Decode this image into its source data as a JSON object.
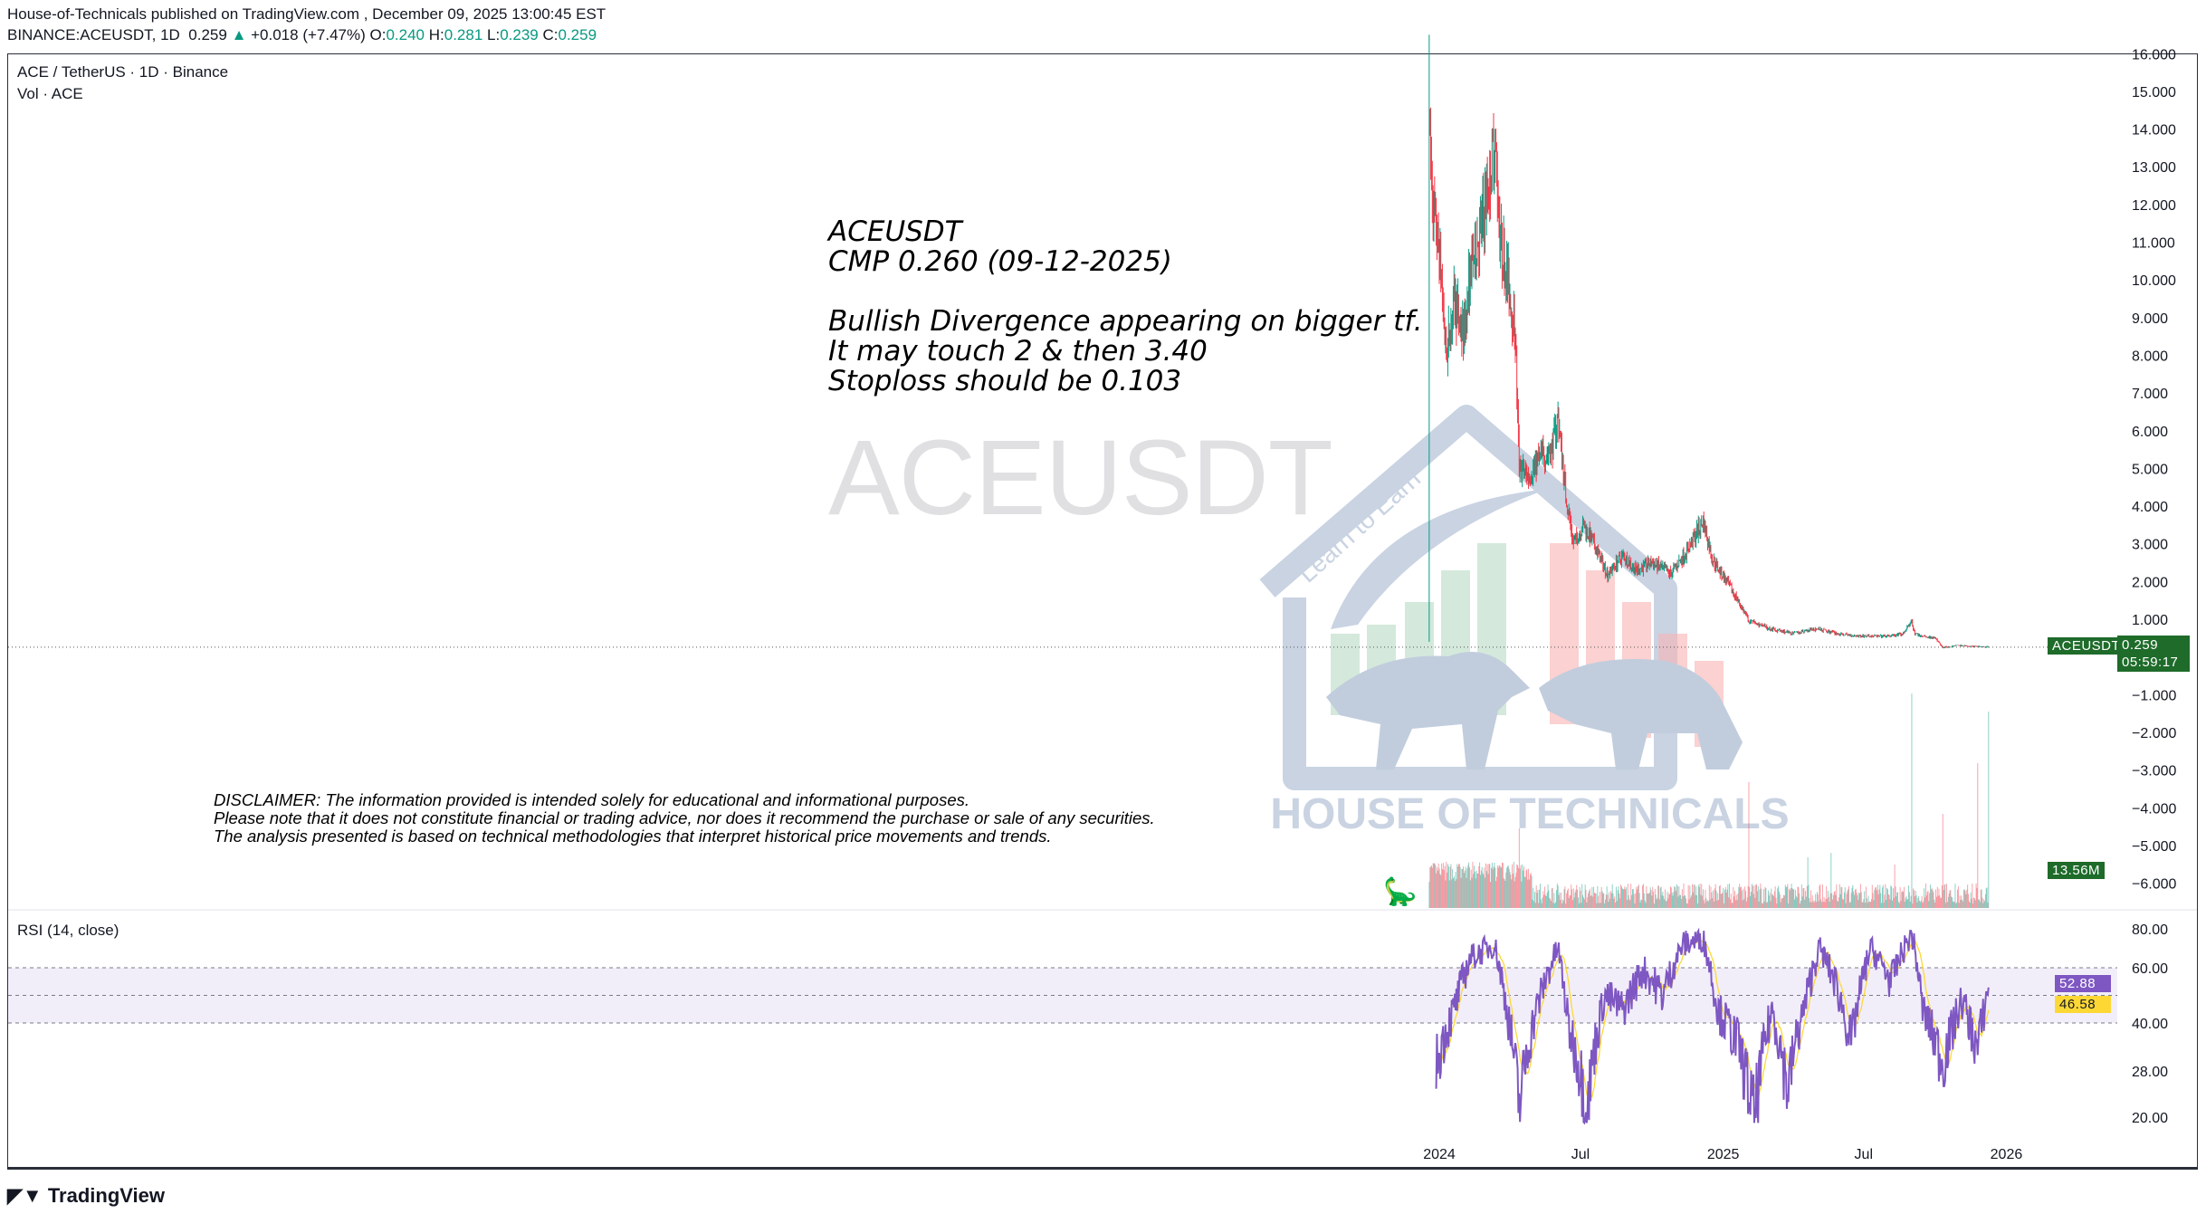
{
  "header": {
    "published": "House-of-Technicals published on TradingView.com , December 09, 2025 13:00:45 EST",
    "symbol": "BINANCE:ACEUSDT, 1D",
    "last": "0.259",
    "change": "+0.018 (+7.47%)",
    "o_label": "O:",
    "o": "0.240",
    "h_label": "H:",
    "h": "0.281",
    "l_label": "L:",
    "l": "0.239",
    "c_label": "C:",
    "c": "0.259"
  },
  "legend": {
    "title": "ACE / TetherUS · 1D · Binance",
    "volume": "Vol · ACE",
    "rsi": "RSI (14, close)"
  },
  "annotation": "ACEUSDT\nCMP 0.260 (09-12-2025)\n\nBullish Divergence appearing on bigger tf.\nIt may touch 2 & then 3.40\nStoploss should be 0.103",
  "disclaimer": "DISCLAIMER: The information provided is intended solely for educational and informational purposes.\nPlease note that it does not constitute financial or trading advice, nor does it recommend the purchase or sale of any securities.\nThe analysis presented is based on technical methodologies that interpret historical price movements and trends.",
  "watermark": "ACEUSDT",
  "logo": {
    "name": "HOUSE OF TECHNICALS",
    "tagline": "Learn to Earn"
  },
  "labels": {
    "symbol_tag": "ACEUSDT",
    "price": "0.259",
    "countdown": "05:59:17",
    "volume": "13.56M",
    "rsi": "52.88",
    "rsi_ma": "46.58"
  },
  "brand": "TradingView",
  "colors": {
    "up": "#089981",
    "down": "#f23645",
    "tag": "#1e6b2a",
    "rsi": "#7e57c2",
    "rsi_ma": "#fdd835"
  },
  "chart_data": [
    {
      "type": "candlestick",
      "title": "ACE / TetherUS · 1D · Binance",
      "scale": "linear",
      "y_ticks": [
        "16.000",
        "15.000",
        "14.000",
        "13.000",
        "12.000",
        "11.000",
        "10.000",
        "9.000",
        "8.000",
        "7.000",
        "6.000",
        "5.000",
        "4.000",
        "3.000",
        "2.000",
        "1.000",
        "−1.000",
        "−2.000",
        "−3.000",
        "−4.000",
        "−5.000",
        "−6.000"
      ],
      "x_ticks": [
        "2024",
        "Jul",
        "2025",
        "Jul",
        "2026"
      ],
      "approx_close": [
        [
          "2023-12-19",
          14.0
        ],
        [
          "2023-12-24",
          12.0
        ],
        [
          "2024-01-02",
          10.5
        ],
        [
          "2024-01-10",
          8.0
        ],
        [
          "2024-01-20",
          9.5
        ],
        [
          "2024-02-01",
          8.5
        ],
        [
          "2024-02-12",
          10.5
        ],
        [
          "2024-02-25",
          11.5
        ],
        [
          "2024-03-05",
          12.5
        ],
        [
          "2024-03-12",
          13.8
        ],
        [
          "2024-03-20",
          11.0
        ],
        [
          "2024-03-30",
          10.0
        ],
        [
          "2024-04-08",
          8.5
        ],
        [
          "2024-04-13",
          5.0
        ],
        [
          "2024-04-25",
          4.8
        ],
        [
          "2024-05-10",
          5.3
        ],
        [
          "2024-05-25",
          5.5
        ],
        [
          "2024-06-02",
          6.4
        ],
        [
          "2024-06-12",
          4.3
        ],
        [
          "2024-06-22",
          3.0
        ],
        [
          "2024-07-05",
          3.5
        ],
        [
          "2024-07-20",
          2.9
        ],
        [
          "2024-08-05",
          2.2
        ],
        [
          "2024-08-25",
          2.7
        ],
        [
          "2024-09-10",
          2.3
        ],
        [
          "2024-10-01",
          2.5
        ],
        [
          "2024-10-25",
          2.2
        ],
        [
          "2024-11-15",
          2.8
        ],
        [
          "2024-12-06",
          3.6
        ],
        [
          "2024-12-18",
          2.6
        ],
        [
          "2025-01-05",
          2.0
        ],
        [
          "2025-01-20",
          1.5
        ],
        [
          "2025-02-03",
          0.95
        ],
        [
          "2025-03-01",
          0.75
        ],
        [
          "2025-04-01",
          0.62
        ],
        [
          "2025-05-01",
          0.75
        ],
        [
          "2025-06-01",
          0.6
        ],
        [
          "2025-07-01",
          0.55
        ],
        [
          "2025-08-01",
          0.55
        ],
        [
          "2025-08-20",
          0.6
        ],
        [
          "2025-09-01",
          0.95
        ],
        [
          "2025-09-05",
          0.6
        ],
        [
          "2025-10-01",
          0.5
        ],
        [
          "2025-10-11",
          0.25
        ],
        [
          "2025-11-01",
          0.3
        ],
        [
          "2025-12-09",
          0.259
        ]
      ],
      "volume_spikes_M": [
        [
          "2024-04-13",
          5.5
        ],
        [
          "2025-02-03",
          8.7
        ],
        [
          "2025-04-20",
          3.5
        ],
        [
          "2025-05-20",
          3.8
        ],
        [
          "2025-08-10",
          3.0
        ],
        [
          "2025-09-01",
          14.8
        ],
        [
          "2025-10-11",
          6.5
        ],
        [
          "2025-11-25",
          10.0
        ],
        [
          "2025-12-09",
          13.56
        ]
      ]
    },
    {
      "type": "line",
      "title": "RSI (14, close)",
      "y_ticks": [
        "80.00",
        "60.00",
        "40.00",
        "28.00",
        "20.00"
      ],
      "band": [
        40,
        60
      ],
      "approx_rsi": [
        [
          "2023-12-28",
          30
        ],
        [
          "2024-01-20",
          45
        ],
        [
          "2024-02-10",
          65
        ],
        [
          "2024-03-12",
          72
        ],
        [
          "2024-03-25",
          50
        ],
        [
          "2024-04-13",
          22
        ],
        [
          "2024-05-05",
          45
        ],
        [
          "2024-06-02",
          70
        ],
        [
          "2024-06-15",
          40
        ],
        [
          "2024-07-10",
          22
        ],
        [
          "2024-08-01",
          50
        ],
        [
          "2024-08-25",
          45
        ],
        [
          "2024-09-20",
          60
        ],
        [
          "2024-10-15",
          50
        ],
        [
          "2024-11-10",
          72
        ],
        [
          "2024-12-06",
          75
        ],
        [
          "2024-12-25",
          45
        ],
        [
          "2025-01-20",
          35
        ],
        [
          "2025-02-10",
          20
        ],
        [
          "2025-03-05",
          45
        ],
        [
          "2025-03-25",
          25
        ],
        [
          "2025-04-15",
          45
        ],
        [
          "2025-05-05",
          70
        ],
        [
          "2025-05-25",
          55
        ],
        [
          "2025-06-15",
          35
        ],
        [
          "2025-07-10",
          70
        ],
        [
          "2025-08-05",
          55
        ],
        [
          "2025-09-01",
          78
        ],
        [
          "2025-09-15",
          45
        ],
        [
          "2025-10-11",
          30
        ],
        [
          "2025-11-05",
          48
        ],
        [
          "2025-11-25",
          33
        ],
        [
          "2025-12-09",
          52.88
        ]
      ]
    }
  ]
}
